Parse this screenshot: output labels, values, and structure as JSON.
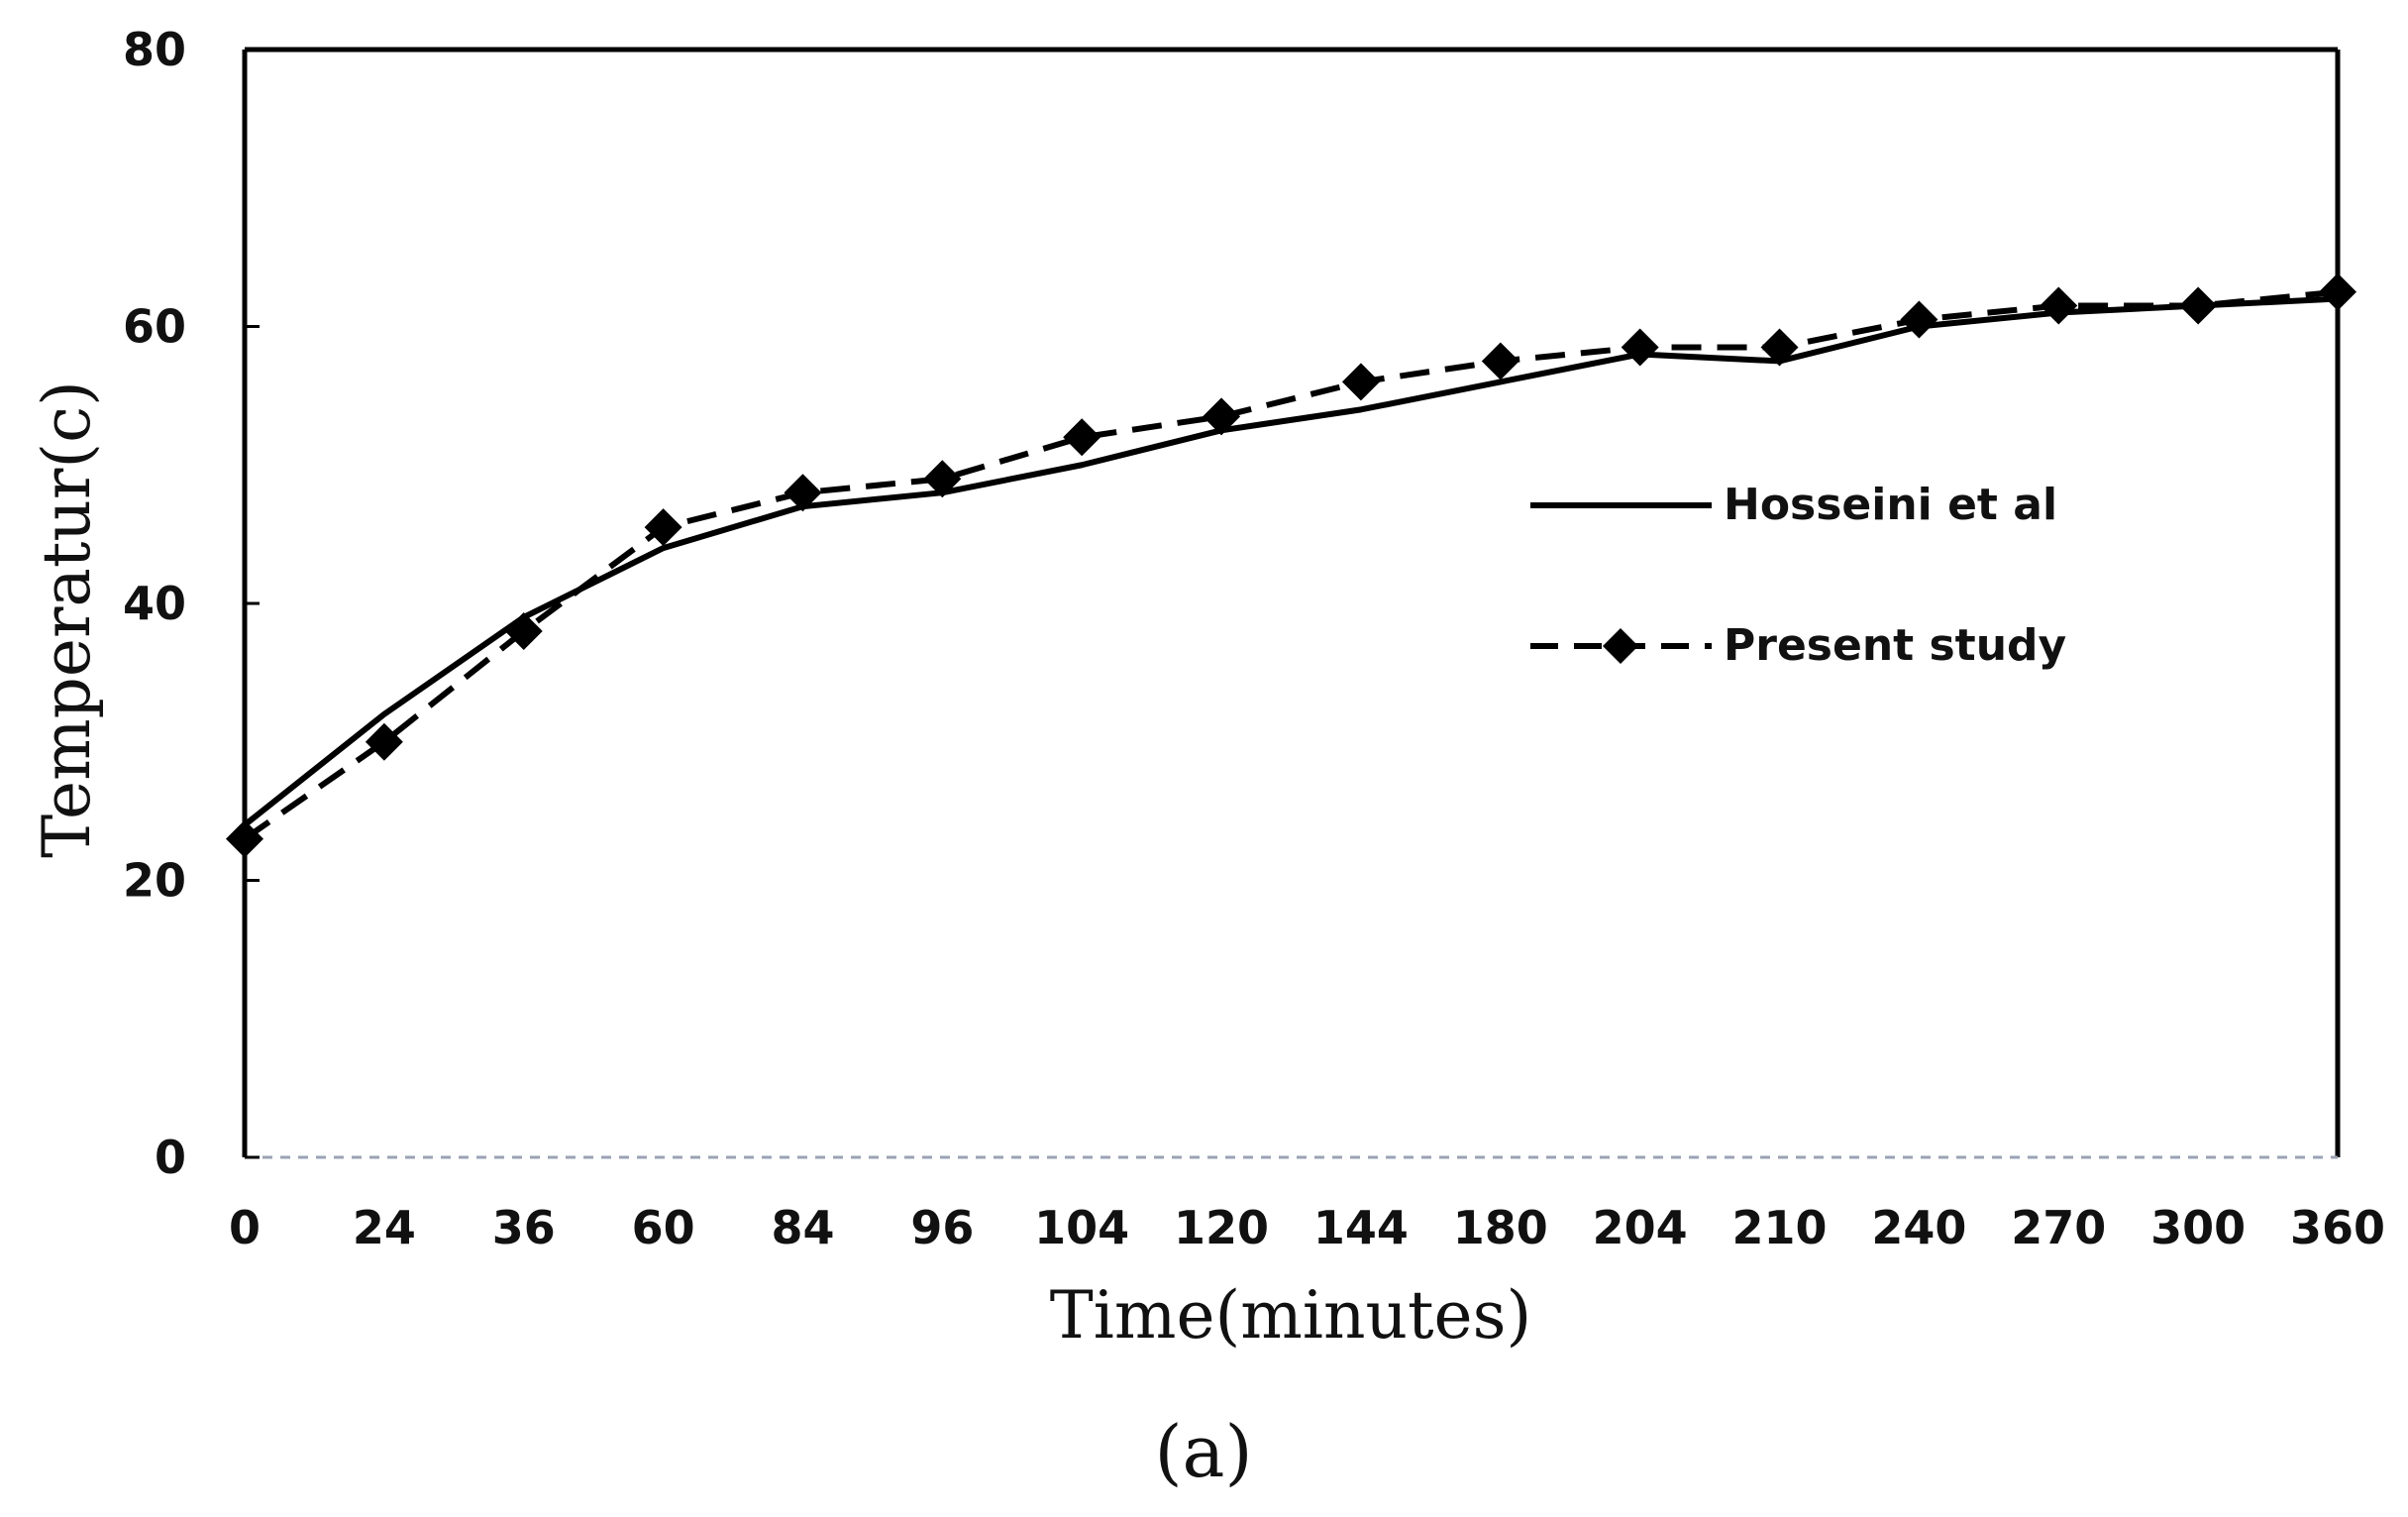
{
  "chart_data": {
    "type": "line",
    "categories": [
      "0",
      "24",
      "36",
      "60",
      "84",
      "96",
      "104",
      "120",
      "144",
      "180",
      "204",
      "210",
      "240",
      "270",
      "300",
      "360"
    ],
    "series": [
      {
        "name": "Hosseini et al",
        "style": "solid",
        "color": "#000000",
        "values": [
          24,
          32,
          39,
          44,
          47,
          48,
          50,
          52.5,
          54,
          56,
          58,
          57.5,
          60,
          61,
          61.5,
          62
        ]
      },
      {
        "name": "Present study",
        "style": "dashed",
        "marker": "diamond",
        "color": "#000000",
        "values": [
          23,
          30,
          38,
          45.5,
          48,
          49,
          52,
          53.5,
          56,
          57.5,
          58.5,
          58.5,
          60.5,
          61.5,
          61.5,
          62.5
        ]
      }
    ],
    "xlabel": "Time(minutes)",
    "ylabel": "Temperatur(c)",
    "ylim": [
      0,
      80
    ],
    "yticks": [
      "0",
      "20",
      "40",
      "60",
      "80"
    ],
    "grid": false,
    "legend_placement": "right-center"
  },
  "caption": "(a)"
}
